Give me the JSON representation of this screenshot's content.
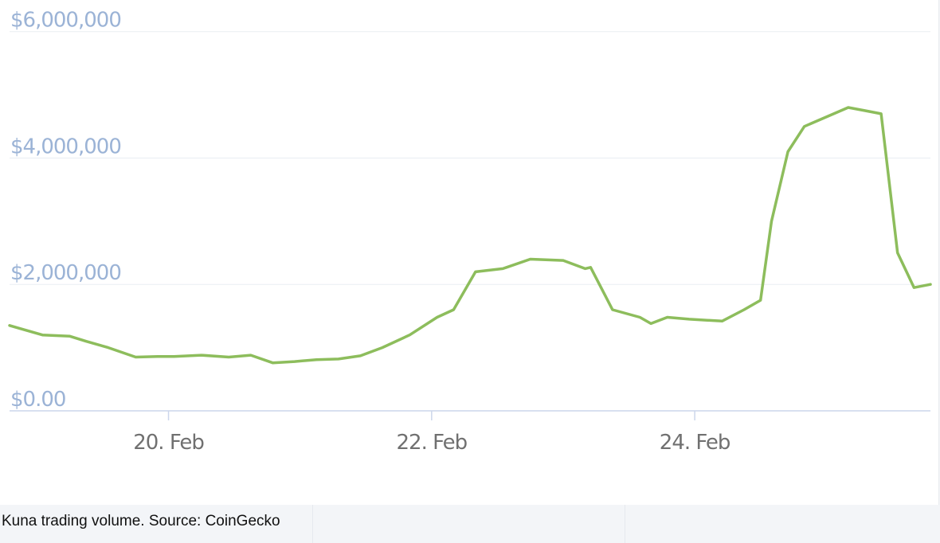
{
  "caption": "Kuna trading volume. Source: CoinGecko",
  "colors": {
    "line": "#8dbd5c",
    "grid": "#e9edf2",
    "axis": "#ccd6eb",
    "y_tick_text": "#9bb3d6",
    "x_tick_text": "#707070"
  },
  "chart_data": {
    "type": "line",
    "title": "",
    "xlabel": "",
    "ylabel": "",
    "y_tick_labels": [
      "$0.00",
      "$2,000,000",
      "$4,000,000",
      "$6,000,000"
    ],
    "y_tick_values": [
      0,
      2000000,
      4000000,
      6000000
    ],
    "x_tick_labels": [
      "20. Feb",
      "22. Feb",
      "24. Feb"
    ],
    "x_tick_values": [
      "2020-02-20",
      "2020-02-22",
      "2020-02-24"
    ],
    "xlim": [
      "2020-02-18T19:00",
      "2020-02-25T19:00"
    ],
    "ylim": [
      0,
      6500000
    ],
    "grid": true,
    "legend": "none",
    "series": [
      {
        "x": [
          "2020-02-18T19:00",
          "2020-02-18T21:00",
          "2020-02-19T01:00",
          "2020-02-19T06:00",
          "2020-02-19T09:00",
          "2020-02-19T13:00",
          "2020-02-19T18:00",
          "2020-02-19T22:00",
          "2020-02-20T01:00",
          "2020-02-20T06:00",
          "2020-02-20T11:00",
          "2020-02-20T15:00",
          "2020-02-20T19:00",
          "2020-02-20T23:00",
          "2020-02-21T03:00",
          "2020-02-21T07:00",
          "2020-02-21T11:00",
          "2020-02-21T15:00",
          "2020-02-21T20:00",
          "2020-02-22T01:00",
          "2020-02-22T04:00",
          "2020-02-22T08:00",
          "2020-02-22T13:00",
          "2020-02-22T18:00",
          "2020-02-23T00:00",
          "2020-02-23T04:00",
          "2020-02-23T05:00",
          "2020-02-23T09:00",
          "2020-02-23T14:00",
          "2020-02-23T16:00",
          "2020-02-23T19:00",
          "2020-02-23T23:00",
          "2020-02-24T05:00",
          "2020-02-24T09:00",
          "2020-02-24T12:00",
          "2020-02-24T14:00",
          "2020-02-24T17:00",
          "2020-02-24T20:00",
          "2020-02-25T00:00",
          "2020-02-25T04:00",
          "2020-02-25T07:00",
          "2020-02-25T10:00",
          "2020-02-25T13:00",
          "2020-02-25T16:00",
          "2020-02-25T19:00"
        ],
        "values": [
          1350000,
          1300000,
          1200000,
          1180000,
          1100000,
          1000000,
          850000,
          860000,
          860000,
          880000,
          850000,
          880000,
          760000,
          780000,
          810000,
          820000,
          870000,
          1000000,
          1200000,
          1480000,
          1600000,
          2200000,
          2250000,
          2400000,
          2380000,
          2250000,
          2270000,
          1600000,
          1480000,
          1380000,
          1480000,
          1450000,
          1420000,
          1600000,
          1750000,
          3000000,
          4100000,
          4500000,
          4650000,
          4800000,
          4750000,
          4700000,
          2500000,
          1950000,
          2000000
        ]
      }
    ]
  }
}
